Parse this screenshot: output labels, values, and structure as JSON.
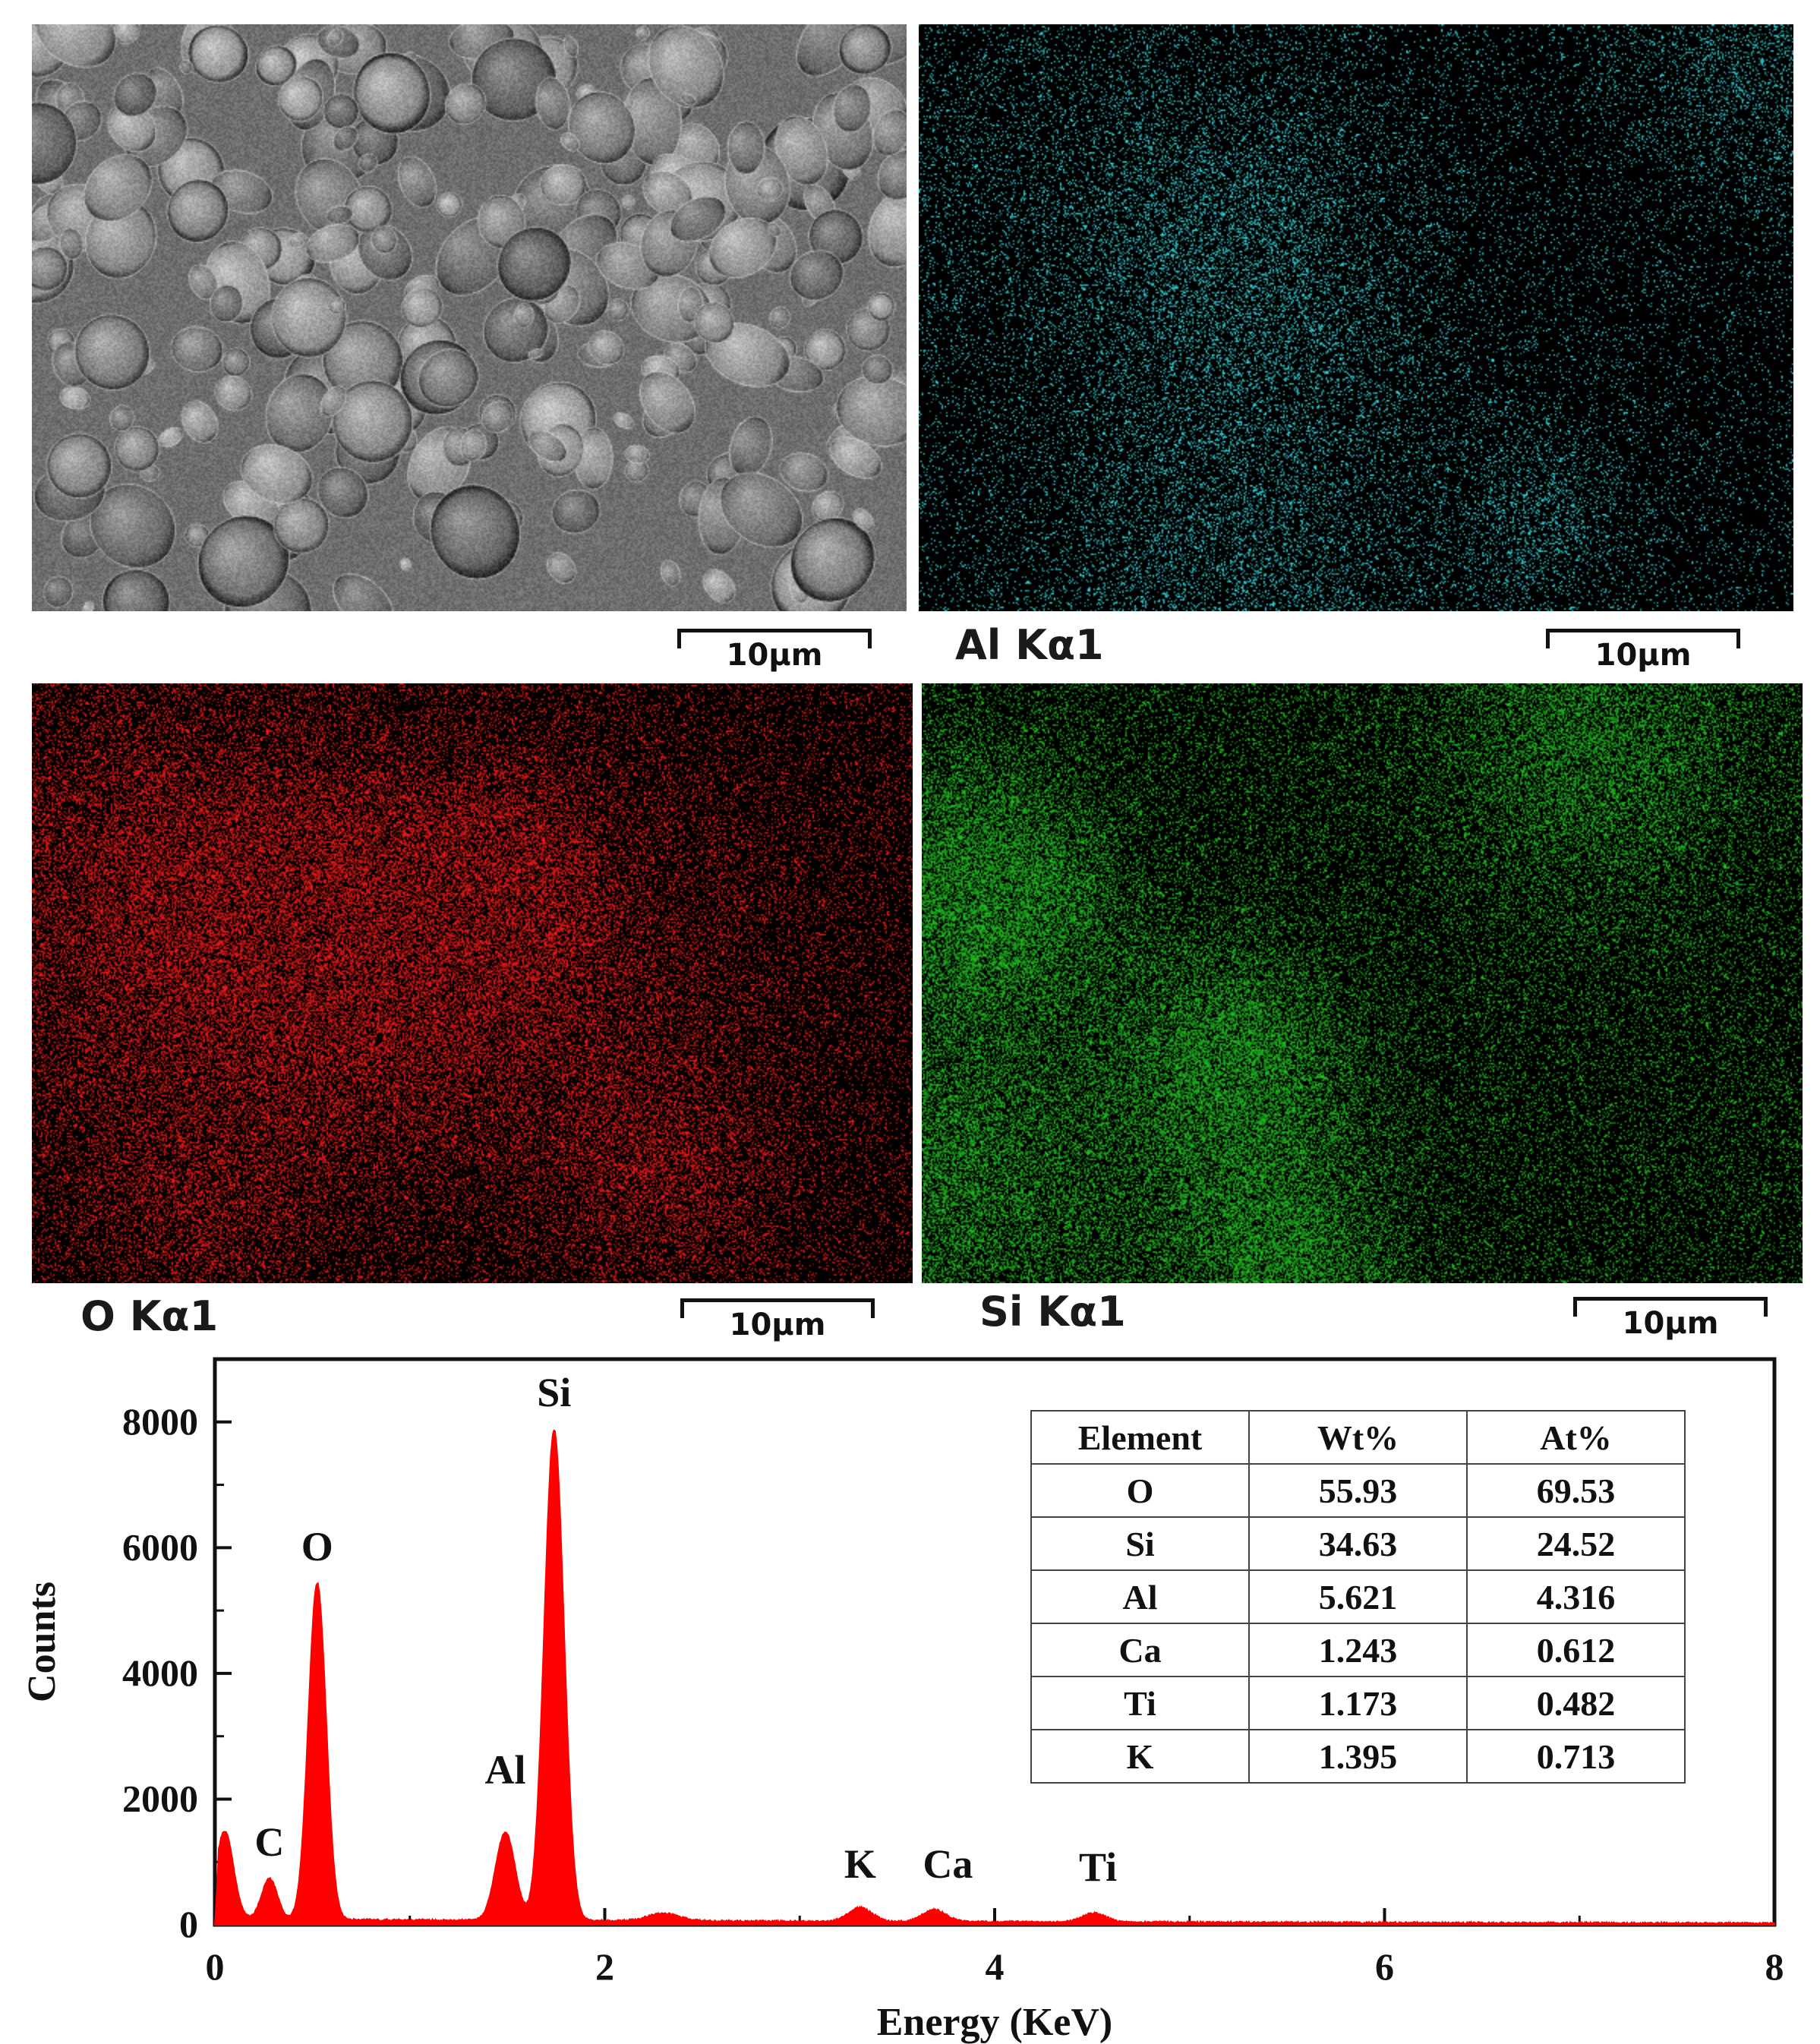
{
  "maps": [
    {
      "id": "sem",
      "label": "",
      "scale": "10μm",
      "color": "#8a8a8a"
    },
    {
      "id": "al",
      "label": "Al Kα1",
      "scale": "10μm",
      "color": "#33e0e6"
    },
    {
      "id": "o",
      "label": "O Kα1",
      "scale": "10μm",
      "color": "#ff1a1a"
    },
    {
      "id": "si",
      "label": "Si Kα1",
      "scale": "10μm",
      "color": "#22c722"
    }
  ],
  "chart_data": {
    "type": "line",
    "xlabel": "Energy (KeV)",
    "ylabel": "Counts",
    "xlim": [
      0,
      8
    ],
    "ylim": [
      0,
      9000
    ],
    "xticks": [
      0,
      2,
      4,
      6,
      8
    ],
    "yticks": [
      0,
      2000,
      4000,
      6000,
      8000
    ],
    "fill_color": "#ff0000",
    "baseline": 90,
    "peaks": [
      {
        "label": "",
        "energy": 0.05,
        "counts": 1400,
        "width": 0.045
      },
      {
        "label": "C",
        "energy": 0.28,
        "counts": 650,
        "width": 0.04
      },
      {
        "label": "O",
        "energy": 0.525,
        "counts": 5350,
        "width": 0.045
      },
      {
        "label": "Al",
        "energy": 1.49,
        "counts": 1400,
        "width": 0.05
      },
      {
        "label": "Si",
        "energy": 1.74,
        "counts": 7800,
        "width": 0.05
      },
      {
        "label": "",
        "energy": 2.3,
        "counts": 120,
        "width": 0.08
      },
      {
        "label": "K",
        "energy": 3.31,
        "counts": 220,
        "width": 0.06
      },
      {
        "label": "Ca",
        "energy": 3.69,
        "counts": 190,
        "width": 0.06
      },
      {
        "label": "Ti",
        "energy": 4.51,
        "counts": 140,
        "width": 0.06
      }
    ],
    "annotations": [
      {
        "text": "Si",
        "x": 1.74,
        "y": 8250
      },
      {
        "text": "O",
        "x": 0.525,
        "y": 5800
      },
      {
        "text": "Al",
        "x": 1.49,
        "y": 2250
      },
      {
        "text": "C",
        "x": 0.28,
        "y": 1100
      },
      {
        "text": "K",
        "x": 3.31,
        "y": 750
      },
      {
        "text": "Ca",
        "x": 3.76,
        "y": 750
      },
      {
        "text": "Ti",
        "x": 4.53,
        "y": 700
      }
    ],
    "table": {
      "headers": [
        "Element",
        "Wt%",
        "At%"
      ],
      "rows": [
        [
          "O",
          "55.93",
          "69.53"
        ],
        [
          "Si",
          "34.63",
          "24.52"
        ],
        [
          "Al",
          "5.621",
          "4.316"
        ],
        [
          "Ca",
          "1.243",
          "0.612"
        ],
        [
          "Ti",
          "1.173",
          "0.482"
        ],
        [
          "K",
          "1.395",
          "0.713"
        ]
      ]
    }
  }
}
